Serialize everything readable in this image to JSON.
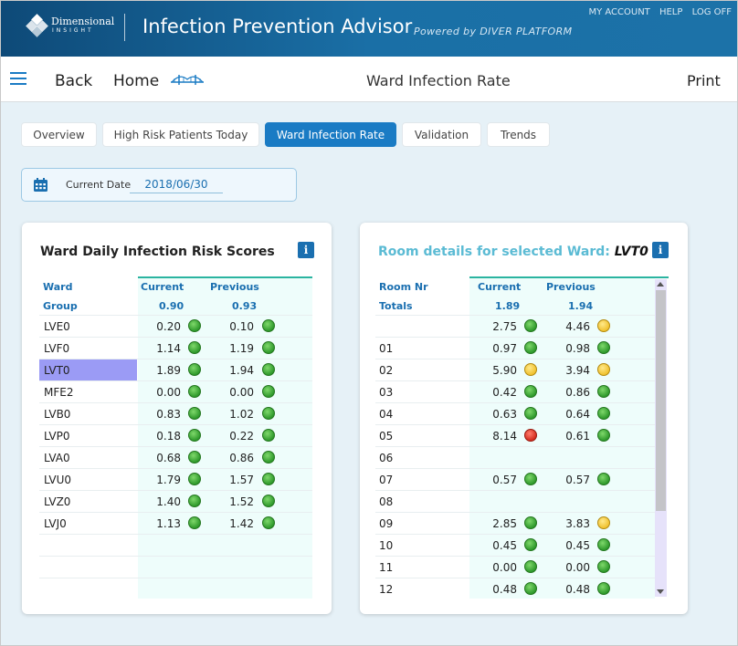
{
  "header": {
    "brand_line1": "Dimensional",
    "brand_line2": "INSIGHT",
    "app_title": "Infection Prevention Advisor",
    "powered_by": "Powered by DIVER PLATFORM",
    "links": [
      "MY ACCOUNT",
      "HELP",
      "LOG OFF"
    ]
  },
  "toolbar": {
    "back_label": "Back",
    "home_label": "Home",
    "page_title": "Ward Infection Rate",
    "print_label": "Print"
  },
  "tabs": [
    {
      "label": "Overview",
      "active": false
    },
    {
      "label": "High Risk Patients Today",
      "active": false
    },
    {
      "label": "Ward Infection Rate",
      "active": true
    },
    {
      "label": "Validation",
      "active": false
    },
    {
      "label": "Trends",
      "active": false
    }
  ],
  "date": {
    "label": "Current Date",
    "value": "2018/06/30"
  },
  "ward_panel": {
    "title": "Ward Daily Infection Risk Scores",
    "columns": {
      "ward": "Ward",
      "current": "Current",
      "previous": "Previous"
    },
    "group": {
      "label": "Group",
      "current": "0.90",
      "previous": "0.93"
    },
    "rows": [
      {
        "ward": "LVE0",
        "current": "0.20",
        "current_status": "green",
        "previous": "0.10",
        "previous_status": "green"
      },
      {
        "ward": "LVF0",
        "current": "1.14",
        "current_status": "green",
        "previous": "1.19",
        "previous_status": "green"
      },
      {
        "ward": "LVT0",
        "current": "1.89",
        "current_status": "green",
        "previous": "1.94",
        "previous_status": "green",
        "selected": true
      },
      {
        "ward": "MFE2",
        "current": "0.00",
        "current_status": "green",
        "previous": "0.00",
        "previous_status": "green"
      },
      {
        "ward": "LVB0",
        "current": "0.83",
        "current_status": "green",
        "previous": "1.02",
        "previous_status": "green"
      },
      {
        "ward": "LVP0",
        "current": "0.18",
        "current_status": "green",
        "previous": "0.22",
        "previous_status": "green"
      },
      {
        "ward": "LVA0",
        "current": "0.68",
        "current_status": "green",
        "previous": "0.86",
        "previous_status": "green"
      },
      {
        "ward": "LVU0",
        "current": "1.79",
        "current_status": "green",
        "previous": "1.57",
        "previous_status": "green"
      },
      {
        "ward": "LVZ0",
        "current": "1.40",
        "current_status": "green",
        "previous": "1.52",
        "previous_status": "green"
      },
      {
        "ward": "LVJ0",
        "current": "1.13",
        "current_status": "green",
        "previous": "1.42",
        "previous_status": "green"
      }
    ]
  },
  "room_panel": {
    "title_prefix": "Room details for selected Ward: ",
    "selected_ward": "LVT0",
    "columns": {
      "room": "Room Nr",
      "current": "Current",
      "previous": "Previous"
    },
    "totals": {
      "label": "Totals",
      "current": "1.89",
      "previous": "1.94"
    },
    "rows": [
      {
        "room": "",
        "current": "2.75",
        "current_status": "green",
        "previous": "4.46",
        "previous_status": "yellow"
      },
      {
        "room": "01",
        "current": "0.97",
        "current_status": "green",
        "previous": "0.98",
        "previous_status": "green"
      },
      {
        "room": "02",
        "current": "5.90",
        "current_status": "yellow",
        "previous": "3.94",
        "previous_status": "yellow"
      },
      {
        "room": "03",
        "current": "0.42",
        "current_status": "green",
        "previous": "0.86",
        "previous_status": "green"
      },
      {
        "room": "04",
        "current": "0.63",
        "current_status": "green",
        "previous": "0.64",
        "previous_status": "green"
      },
      {
        "room": "05",
        "current": "8.14",
        "current_status": "red",
        "previous": "0.61",
        "previous_status": "green"
      },
      {
        "room": "06",
        "current": "",
        "current_status": "",
        "previous": "",
        "previous_status": ""
      },
      {
        "room": "07",
        "current": "0.57",
        "current_status": "green",
        "previous": "0.57",
        "previous_status": "green"
      },
      {
        "room": "08",
        "current": "",
        "current_status": "",
        "previous": "",
        "previous_status": ""
      },
      {
        "room": "09",
        "current": "2.85",
        "current_status": "green",
        "previous": "3.83",
        "previous_status": "yellow"
      },
      {
        "room": "10",
        "current": "0.45",
        "current_status": "green",
        "previous": "0.45",
        "previous_status": "green"
      },
      {
        "room": "11",
        "current": "0.00",
        "current_status": "green",
        "previous": "0.00",
        "previous_status": "green"
      },
      {
        "room": "12",
        "current": "0.48",
        "current_status": "green",
        "previous": "0.48",
        "previous_status": "green"
      }
    ]
  },
  "icons": {
    "menu": "hamburger-icon",
    "home": "bridge-icon",
    "calendar": "calendar-icon",
    "info": "info-icon"
  },
  "colors": {
    "header": "#1a6fa6",
    "accent": "#1a7bc4",
    "status_green": "#2f9a2c",
    "status_yellow": "#f0c230",
    "status_red": "#d42d1f",
    "selected_row": "#9b9bf5"
  }
}
